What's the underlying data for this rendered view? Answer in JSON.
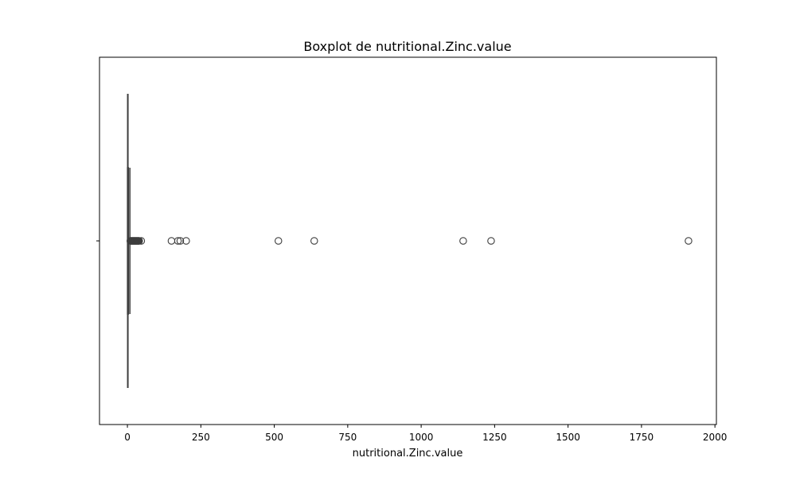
{
  "chart_data": {
    "type": "boxplot",
    "title": "Boxplot de nutritional.Zinc.value",
    "xlabel": "nutritional.Zinc.value",
    "ylabel": "",
    "xlim": [
      -95,
      2005
    ],
    "x_ticks": [
      0,
      250,
      500,
      750,
      1000,
      1250,
      1500,
      1750,
      2000
    ],
    "x_tick_labels": [
      "0",
      "250",
      "500",
      "750",
      "1000",
      "1250",
      "1500",
      "1750",
      "2000"
    ],
    "grid": false,
    "box": {
      "whisker_low": 0,
      "q1": 0.3,
      "median": 1.2,
      "q3": 3.5,
      "whisker_high": 8.5
    },
    "outliers": [
      10,
      12,
      14,
      16,
      18,
      20,
      22,
      24,
      26,
      28,
      30,
      32,
      34,
      36,
      38,
      40,
      47,
      150,
      172,
      180,
      200,
      514,
      636,
      1143,
      1238,
      1910
    ],
    "colors": {
      "box_edge": "#3d3d3d",
      "outlier_edge": "#3d3d3d",
      "frame": "#000000"
    }
  }
}
